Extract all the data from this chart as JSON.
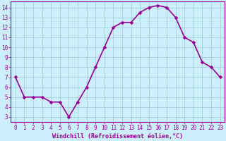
{
  "x": [
    0,
    1,
    2,
    3,
    4,
    5,
    6,
    7,
    8,
    9,
    10,
    11,
    12,
    13,
    14,
    15,
    16,
    17,
    18,
    19,
    20,
    21,
    22,
    23
  ],
  "y": [
    7,
    5,
    5,
    5,
    4.5,
    4.5,
    3,
    4.5,
    6,
    8,
    10,
    12,
    12.5,
    12.5,
    13.5,
    14,
    14.2,
    14,
    13,
    11,
    10.5,
    8.5,
    8,
    7
  ],
  "line_color": "#990099",
  "marker_color": "#990099",
  "bg_color": "#cceeff",
  "grid_color": "#99cccc",
  "xlabel": "Windchill (Refroidissement éolien,°C)",
  "xlim_min": -0.5,
  "xlim_max": 23.5,
  "ylim_min": 2.5,
  "ylim_max": 14.6,
  "xtick_labels": [
    "0",
    "1",
    "2",
    "3",
    "4",
    "5",
    "6",
    "7",
    "8",
    "9",
    "10",
    "11",
    "12",
    "13",
    "14",
    "15",
    "16",
    "17",
    "18",
    "19",
    "20",
    "21",
    "22",
    "23"
  ],
  "ytick_values": [
    3,
    4,
    5,
    6,
    7,
    8,
    9,
    10,
    11,
    12,
    13,
    14
  ],
  "axis_label_color": "#990099",
  "tick_color": "#990099",
  "line_width": 1.2,
  "marker_size": 2.5,
  "tick_fontsize": 5.5,
  "xlabel_fontsize": 6
}
